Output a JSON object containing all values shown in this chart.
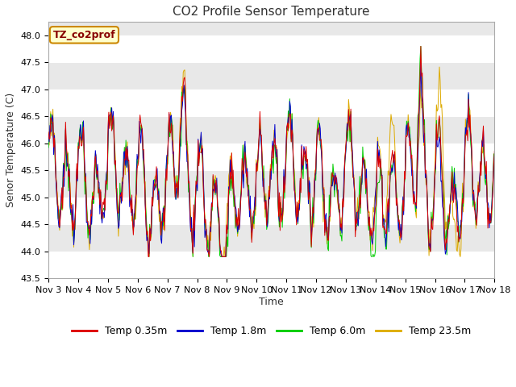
{
  "title": "CO2 Profile Sensor Temperature",
  "ylabel": "Senor Temperature (C)",
  "xlabel": "Time",
  "ylim": [
    43.5,
    48.25
  ],
  "xlim": [
    0,
    15
  ],
  "series_labels": [
    "Temp 0.35m",
    "Temp 1.8m",
    "Temp 6.0m",
    "Temp 23.5m"
  ],
  "series_colors": [
    "#dd0000",
    "#0000cc",
    "#00cc00",
    "#ddaa00"
  ],
  "annotation_text": "TZ_co2prof",
  "annotation_bg": "#ffffcc",
  "annotation_border": "#cc8800",
  "x_tick_labels": [
    "Nov 3",
    "Nov 4",
    "Nov 5",
    "Nov 6",
    "Nov 7",
    "Nov 8",
    "Nov 9",
    "Nov 10",
    "Nov 11",
    "Nov 12",
    "Nov 13",
    "Nov 14",
    "Nov 15",
    "Nov 16",
    "Nov 17",
    "Nov 18"
  ],
  "plot_bg_color": "#e8e8e8",
  "fig_bg_color": "#ffffff",
  "grid_color": "#ffffff",
  "title_fontsize": 11,
  "label_fontsize": 9,
  "tick_fontsize": 8,
  "legend_fontsize": 9,
  "n_points": 600,
  "seed": 7
}
